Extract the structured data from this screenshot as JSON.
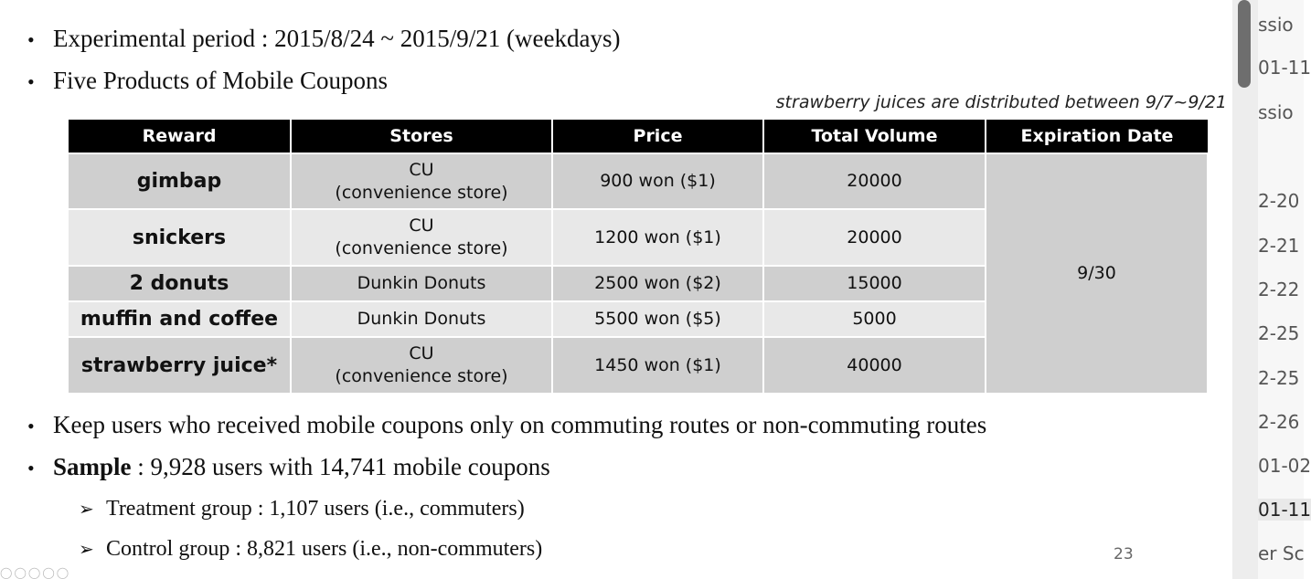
{
  "bullets": {
    "period": "Experimental period : 2015/8/24 ~ 2015/9/21 (weekdays)",
    "products": "Five Products of Mobile Coupons",
    "keep": "Keep users who received mobile coupons only on commuting routes or non-commuting routes",
    "sample_label": "Sample",
    "sample_text": " : 9,928 users with 14,741 mobile coupons",
    "treatment": "Treatment group : 1,107 users (i.e., commuters)",
    "control": "Control group : 8,821 users (i.e., non-commuters)",
    "bullet_glyph": "•",
    "sub_glyph": "➢"
  },
  "note": "strawberry juices are distributed between 9/7~9/21",
  "table": {
    "headers": [
      "Reward",
      "Stores",
      "Price",
      "Total Volume",
      "Expiration Date"
    ],
    "rows": [
      {
        "reward": "gimbap",
        "store1": "CU",
        "store2": "(convenience store)",
        "price": "900 won ($1)",
        "volume": "20000"
      },
      {
        "reward": "snickers",
        "store1": "CU",
        "store2": "(convenience store)",
        "price": "1200 won ($1)",
        "volume": "20000"
      },
      {
        "reward": "2 donuts",
        "store1": "Dunkin Donuts",
        "store2": "",
        "price": "2500 won ($2)",
        "volume": "15000"
      },
      {
        "reward": "muffin and coffee",
        "store1": "Dunkin Donuts",
        "store2": "",
        "price": "5500 won ($5)",
        "volume": "5000"
      },
      {
        "reward": "strawberry juice*",
        "store1": "CU",
        "store2": "(convenience store)",
        "price": "1450 won ($1)",
        "volume": "40000"
      }
    ],
    "expiration": "9/30"
  },
  "page_number": "23",
  "sidebar": {
    "items": [
      "ssio",
      "01-11",
      "ssio",
      "2-20",
      "2-21",
      "2-22",
      "2-25",
      "2-25",
      "2-26",
      "01-02",
      "01-11",
      "er Sc"
    ]
  }
}
